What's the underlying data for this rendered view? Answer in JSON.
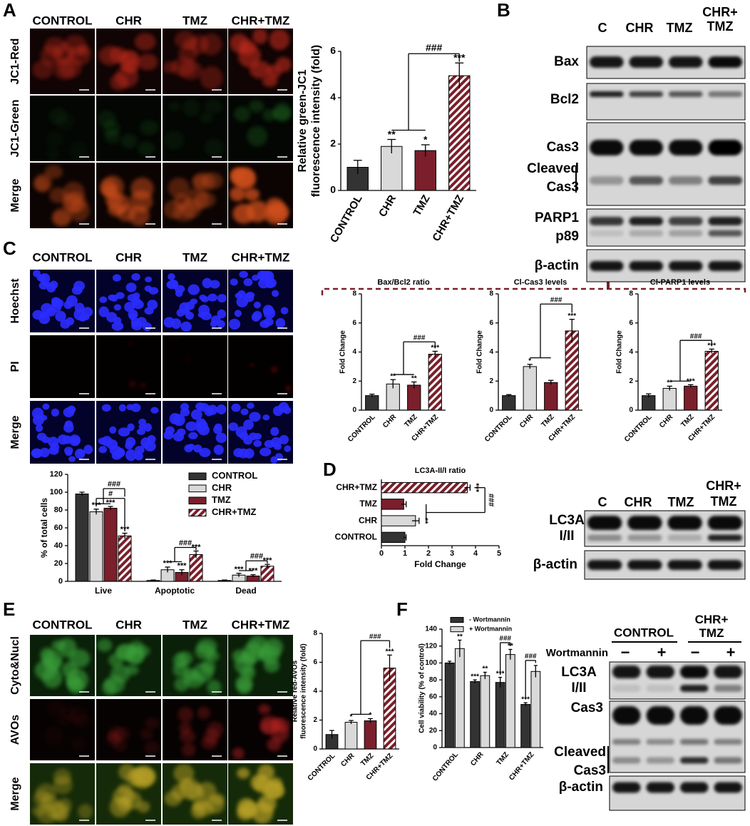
{
  "chart_data": [
    {
      "type": "bar",
      "ylabel": [
        "Relative green-JC1",
        "fluorescence intensity (fold)"
      ],
      "categories": [
        "CONTROL",
        "CHR",
        "TMZ",
        "CHR+TMZ"
      ],
      "values": [
        1.0,
        1.9,
        1.72,
        4.95
      ],
      "errors": [
        0.3,
        0.3,
        0.25,
        0.55
      ],
      "colors": [
        "#333333",
        "#d9d9d9",
        "#7a1f2b",
        "#7a1f2b"
      ],
      "hatch": [
        false,
        false,
        false,
        true
      ],
      "stars": [
        null,
        "**",
        "*",
        "***"
      ],
      "comparison_labels": [
        "###"
      ],
      "ylim": [
        0,
        6
      ],
      "yticks": [
        0,
        2,
        4,
        6
      ]
    },
    {
      "type": "bar",
      "title": "Bax/Bcl2 ratio",
      "ylabel": [
        "Fold Change"
      ],
      "categories": [
        "CONTROL",
        "CHR",
        "TMZ",
        "CHR+TMZ"
      ],
      "values": [
        1.0,
        1.8,
        1.72,
        3.85
      ],
      "errors": [
        0.1,
        0.3,
        0.22,
        0.2
      ],
      "colors": [
        "#333333",
        "#d9d9d9",
        "#7a1f2b",
        "#7a1f2b"
      ],
      "hatch": [
        false,
        false,
        false,
        true
      ],
      "stars": [
        null,
        "**",
        "**",
        "***"
      ],
      "comparison_labels": [
        "###"
      ],
      "ylim": [
        0,
        8
      ],
      "yticks": [
        0,
        2,
        4,
        6,
        8
      ]
    },
    {
      "type": "bar",
      "title": "Cl-Cas3 levels",
      "ylabel": [
        "Fold Change"
      ],
      "categories": [
        "CONTROL",
        "CHR",
        "TMZ",
        "CHR+TMZ"
      ],
      "values": [
        1.0,
        3.0,
        1.9,
        5.45
      ],
      "errors": [
        0.07,
        0.15,
        0.15,
        0.8
      ],
      "colors": [
        "#333333",
        "#d9d9d9",
        "#7a1f2b",
        "#7a1f2b"
      ],
      "hatch": [
        false,
        false,
        false,
        true
      ],
      "stars": [
        null,
        "*",
        null,
        "***"
      ],
      "comparison_labels": [
        "###"
      ],
      "ylim": [
        0,
        8
      ],
      "yticks": [
        0,
        2,
        4,
        6,
        8
      ]
    },
    {
      "type": "bar",
      "title": "Cl-PARP1 levels",
      "ylabel": [
        "Fold Change"
      ],
      "categories": [
        "CONTROL",
        "CHR",
        "TMZ",
        "CHR+TMZ"
      ],
      "values": [
        1.0,
        1.5,
        1.65,
        4.05
      ],
      "errors": [
        0.12,
        0.15,
        0.1,
        0.15
      ],
      "colors": [
        "#333333",
        "#d9d9d9",
        "#7a1f2b",
        "#7a1f2b"
      ],
      "hatch": [
        false,
        false,
        false,
        true
      ],
      "stars": [
        null,
        "**",
        "***",
        "***"
      ],
      "comparison_labels": [
        "###"
      ],
      "ylim": [
        0,
        8
      ],
      "yticks": [
        0,
        2,
        4,
        6,
        8
      ]
    },
    {
      "type": "grouped_bar",
      "ylabel": [
        "% of total cells"
      ],
      "categories": [
        "Live",
        "Apoptotic",
        "Dead"
      ],
      "series": [
        {
          "name": "CONTROL",
          "color": "#333333",
          "hatch": false,
          "values": [
            98,
            1,
            1
          ],
          "errors": [
            2,
            0.5,
            0.5
          ],
          "stars": [
            null,
            null,
            null
          ]
        },
        {
          "name": "CHR",
          "color": "#d9d9d9",
          "hatch": false,
          "values": [
            78,
            13,
            7
          ],
          "errors": [
            3,
            3,
            2
          ],
          "stars": [
            "***",
            "***",
            "***"
          ]
        },
        {
          "name": "TMZ",
          "color": "#7a1f2b",
          "hatch": false,
          "values": [
            82,
            10,
            6
          ],
          "errors": [
            2,
            3,
            1.5
          ],
          "stars": [
            "***",
            "***",
            "***"
          ]
        },
        {
          "name": "CHR+TMZ",
          "color": "#7a1f2b",
          "hatch": true,
          "values": [
            51,
            30,
            17
          ],
          "errors": [
            3,
            4,
            2
          ],
          "stars": [
            "***",
            "***",
            "***"
          ]
        }
      ],
      "comparison_labels": [
        "#",
        "###",
        "###",
        "###"
      ],
      "ylim": [
        0,
        120
      ],
      "yticks": [
        0,
        20,
        40,
        60,
        80,
        100,
        120
      ],
      "legend": "upper right"
    },
    {
      "type": "hbar",
      "title": "LC3A-II/I ratio",
      "xlabel": "Fold Change",
      "categories": [
        "CHR+TMZ",
        "TMZ",
        "CHR",
        "CONTROL"
      ],
      "values": [
        3.65,
        0.95,
        1.45,
        1.0
      ],
      "errors": [
        0.12,
        0.1,
        0.15,
        0.05
      ],
      "colors": [
        "#7a1f2b",
        "#7a1f2b",
        "#d9d9d9",
        "#333333"
      ],
      "hatch": [
        true,
        false,
        false,
        false
      ],
      "stars": [
        "***",
        null,
        "**",
        null
      ],
      "comparison_labels": [
        "###"
      ],
      "xlim": [
        0,
        5
      ],
      "xticks": [
        0,
        1,
        2,
        3,
        4,
        5
      ]
    },
    {
      "type": "bar",
      "ylabel": [
        "Relative red-AVOs",
        "fluorescence intensity (fold)"
      ],
      "categories": [
        "CONTROL",
        "CHR",
        "TMZ",
        "CHR+TMZ"
      ],
      "values": [
        1.0,
        1.85,
        1.95,
        5.6
      ],
      "errors": [
        0.28,
        0.12,
        0.15,
        0.9
      ],
      "colors": [
        "#333333",
        "#d9d9d9",
        "#7a1f2b",
        "#7a1f2b"
      ],
      "hatch": [
        false,
        false,
        false,
        true
      ],
      "stars": [
        null,
        "*",
        "*",
        "***"
      ],
      "comparison_labels": [
        "###"
      ],
      "ylim": [
        0,
        8
      ],
      "yticks": [
        0,
        2,
        4,
        6,
        8
      ]
    },
    {
      "type": "grouped_bar",
      "ylabel": [
        "Cell viability (% of control)"
      ],
      "categories": [
        "CONTROL",
        "CHR",
        "TMZ",
        "CHR+TMZ"
      ],
      "series": [
        {
          "name": "- Wortmannin",
          "color": "#333333",
          "hatch": false,
          "values": [
            100,
            78,
            77,
            51
          ],
          "errors": [
            2,
            2,
            6,
            2
          ],
          "stars": [
            null,
            "***",
            "***",
            "***"
          ]
        },
        {
          "name": "+ Wortmannin",
          "color": "#d9d9d9",
          "hatch": false,
          "values": [
            117,
            85,
            110,
            90
          ],
          "errors": [
            10,
            4,
            6,
            7
          ],
          "stars": [
            "**",
            "**",
            "**",
            null
          ]
        }
      ],
      "comparison_labels": [
        "###",
        "###"
      ],
      "ylim": [
        0,
        140
      ],
      "yticks": [
        0,
        20,
        40,
        60,
        80,
        100,
        120,
        140
      ],
      "legend": "upper left"
    }
  ],
  "figure": {
    "panel_letters": [
      "A",
      "B",
      "C",
      "D",
      "E",
      "F"
    ],
    "micrographs": [
      {
        "columns": [
          "CONTROL",
          "CHR",
          "TMZ",
          "CHR+TMZ"
        ],
        "rows": [
          "JC1-Red",
          "JC1-Green",
          "Merge"
        ]
      },
      {
        "columns": [
          "CONTROL",
          "CHR",
          "TMZ",
          "CHR+TMZ"
        ],
        "rows": [
          "Hoechst",
          "PI",
          "Merge"
        ]
      },
      {
        "columns": [
          "CONTROL",
          "CHR",
          "TMZ",
          "CHR+TMZ"
        ],
        "rows": [
          "Cyto&Nucl",
          "AVOs",
          "Merge"
        ]
      }
    ],
    "blots": [
      {
        "columns": [
          [
            "C"
          ],
          [
            "CHR"
          ],
          [
            "TMZ"
          ],
          [
            "CHR+",
            "TMZ"
          ]
        ],
        "rows": [
          [
            "Bax"
          ],
          [
            "Bcl2"
          ],
          [
            "Cas3"
          ],
          [
            "Cleaved",
            "Cas3"
          ],
          [
            "PARP1",
            "p89"
          ],
          [
            "β-actin"
          ]
        ]
      },
      {
        "columns": [
          [
            "C"
          ],
          [
            "CHR"
          ],
          [
            "TMZ"
          ],
          [
            "CHR+",
            "TMZ"
          ]
        ],
        "rows": [
          [
            "LC3A",
            "I/II"
          ],
          [
            "β-actin"
          ]
        ]
      },
      {
        "groups": [
          [
            "CONTROL"
          ],
          [
            "CHR+",
            "TMZ"
          ]
        ],
        "treatment": "Wortmannin",
        "treatment_levels": [
          "−",
          "+",
          "−",
          "+"
        ],
        "rows": [
          [
            "LC3A",
            "I/II"
          ],
          [
            "Cas3"
          ],
          [
            "Cleaved",
            "Cas3"
          ],
          [
            "β-actin"
          ]
        ]
      }
    ]
  }
}
